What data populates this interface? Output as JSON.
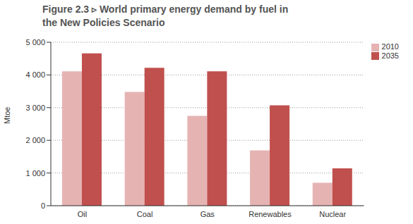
{
  "chart_data": {
    "type": "bar",
    "title": "Figure 2.3 ▹ World primary energy demand by fuel in the New Policies Scenario",
    "y_label": "Mtoe",
    "categories": [
      "Oil",
      "Coal",
      "Gas",
      "Renewables",
      "Nuclear"
    ],
    "series": [
      {
        "name": "2010",
        "color": "#e6b3b3",
        "values": [
          4110,
          3480,
          2750,
          1690,
          700
        ]
      },
      {
        "name": "2035",
        "color": "#c0504d",
        "values": [
          4660,
          4220,
          4110,
          3070,
          1140
        ]
      }
    ],
    "ylim": [
      0,
      5000
    ],
    "yticks": [
      0,
      {
        "value": 1000,
        "label": "1 000"
      },
      {
        "value": 2000,
        "label": "2 000"
      },
      {
        "value": 3000,
        "label": "3 000"
      },
      {
        "value": 4000,
        "label": "4 000"
      },
      {
        "value": 5000,
        "label": "5 000"
      }
    ],
    "grid": true,
    "legend": "top-right"
  }
}
